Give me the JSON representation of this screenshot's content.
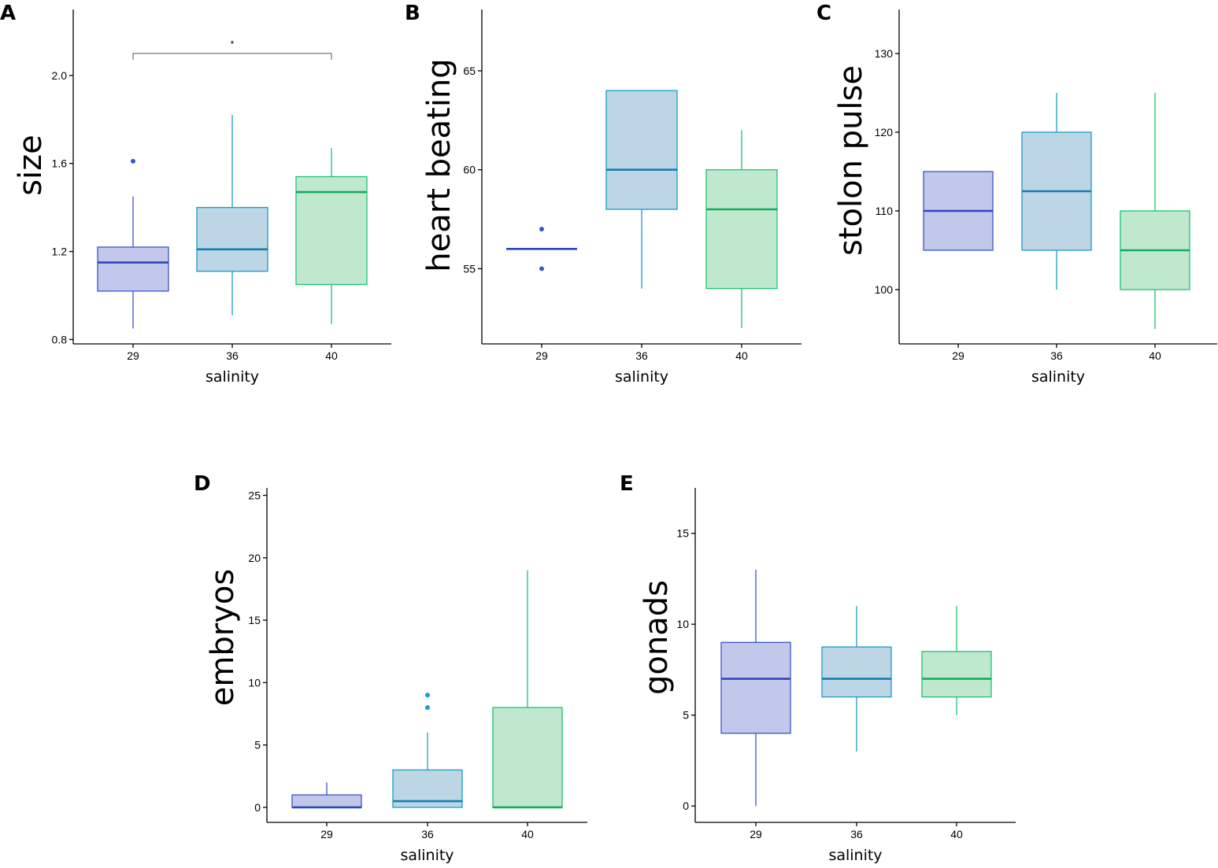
{
  "colors": {
    "29": {
      "fill": "#c2c7ec",
      "stroke": "#3a56c8",
      "median": "#2b48b8"
    },
    "36": {
      "fill": "#bcd6e6",
      "stroke": "#1b9cc8",
      "median": "#137fb0"
    },
    "40": {
      "fill": "#c0e8cf",
      "stroke": "#1ec173",
      "median": "#12ad5e"
    }
  },
  "chart_data": [
    {
      "type": "box",
      "panel": "A",
      "title": "",
      "xlabel": "salinity",
      "ylabel": "size",
      "categories": [
        "29",
        "36",
        "40"
      ],
      "ylim": [
        0.78,
        2.3
      ],
      "yticks": [
        0.8,
        1.2,
        1.6,
        2.0
      ],
      "ytick_labels": [
        "0.8",
        "1.2",
        "1.6",
        "2.0"
      ],
      "boxes": [
        {
          "category": "29",
          "whisker_low": 0.85,
          "q1": 1.02,
          "median": 1.15,
          "q3": 1.22,
          "whisker_high": 1.45,
          "outliers": [
            1.61
          ]
        },
        {
          "category": "36",
          "whisker_low": 0.91,
          "q1": 1.11,
          "median": 1.21,
          "q3": 1.4,
          "whisker_high": 1.82,
          "outliers": []
        },
        {
          "category": "40",
          "whisker_low": 0.87,
          "q1": 1.05,
          "median": 1.47,
          "q3": 1.54,
          "whisker_high": 1.67,
          "outliers": []
        }
      ],
      "significance": {
        "from": "29",
        "to": "40",
        "y": 2.1,
        "label": "*"
      }
    },
    {
      "type": "box",
      "panel": "B",
      "title": "",
      "xlabel": "salinity",
      "ylabel": "heart beating",
      "categories": [
        "29",
        "36",
        "40"
      ],
      "ylim": [
        51.2,
        68.1
      ],
      "yticks": [
        55,
        60,
        65
      ],
      "ytick_labels": [
        "55",
        "60",
        "65"
      ],
      "boxes": [
        {
          "category": "29",
          "whisker_low": 56,
          "q1": 56,
          "median": 56,
          "q3": 56,
          "whisker_high": 56,
          "outliers": [
            57,
            55
          ]
        },
        {
          "category": "36",
          "whisker_low": 54,
          "q1": 58,
          "median": 60,
          "q3": 64,
          "whisker_high": 64,
          "outliers": []
        },
        {
          "category": "40",
          "whisker_low": 52,
          "q1": 54,
          "median": 58,
          "q3": 60,
          "whisker_high": 62,
          "outliers": []
        }
      ]
    },
    {
      "type": "box",
      "panel": "C",
      "title": "",
      "xlabel": "salinity",
      "ylabel": "stolon pulse",
      "categories": [
        "29",
        "36",
        "40"
      ],
      "ylim": [
        93.1,
        135.6
      ],
      "yticks": [
        100,
        110,
        120,
        130
      ],
      "ytick_labels": [
        "100",
        "110",
        "120",
        "130"
      ],
      "boxes": [
        {
          "category": "29",
          "whisker_low": 105,
          "q1": 105,
          "median": 110,
          "q3": 115,
          "whisker_high": 115,
          "outliers": []
        },
        {
          "category": "36",
          "whisker_low": 100,
          "q1": 105,
          "median": 112.5,
          "q3": 120,
          "whisker_high": 125,
          "outliers": []
        },
        {
          "category": "40",
          "whisker_low": 95,
          "q1": 100,
          "median": 105,
          "q3": 110,
          "whisker_high": 125,
          "outliers": []
        }
      ]
    },
    {
      "type": "box",
      "panel": "D",
      "title": "",
      "xlabel": "salinity",
      "ylabel": "embryos",
      "categories": [
        "29",
        "36",
        "40"
      ],
      "ylim": [
        -1.2,
        25.6
      ],
      "yticks": [
        0,
        5,
        10,
        15,
        20,
        25
      ],
      "ytick_labels": [
        "0",
        "5",
        "10",
        "15",
        "20",
        "25"
      ],
      "boxes": [
        {
          "category": "29",
          "whisker_low": 0,
          "q1": 0,
          "median": 0,
          "q3": 1,
          "whisker_high": 2,
          "outliers": []
        },
        {
          "category": "36",
          "whisker_low": 0,
          "q1": 0,
          "median": 0.5,
          "q3": 3,
          "whisker_high": 6,
          "outliers": [
            8,
            9
          ]
        },
        {
          "category": "40",
          "whisker_low": 0,
          "q1": 0,
          "median": 0,
          "q3": 8,
          "whisker_high": 19,
          "outliers": []
        }
      ]
    },
    {
      "type": "box",
      "panel": "E",
      "title": "",
      "xlabel": "salinity",
      "ylabel": "gonads",
      "categories": [
        "29",
        "36",
        "40"
      ],
      "ylim": [
        -0.9,
        17.5
      ],
      "yticks": [
        0,
        5,
        10,
        15
      ],
      "ytick_labels": [
        "0",
        "5",
        "10",
        "15"
      ],
      "boxes": [
        {
          "category": "29",
          "whisker_low": 0,
          "q1": 4,
          "median": 7,
          "q3": 9,
          "whisker_high": 13,
          "outliers": []
        },
        {
          "category": "36",
          "whisker_low": 3,
          "q1": 6,
          "median": 7,
          "q3": 8.75,
          "whisker_high": 11,
          "outliers": []
        },
        {
          "category": "40",
          "whisker_low": 5,
          "q1": 6,
          "median": 7,
          "q3": 8.5,
          "whisker_high": 11,
          "outliers": []
        }
      ]
    }
  ]
}
